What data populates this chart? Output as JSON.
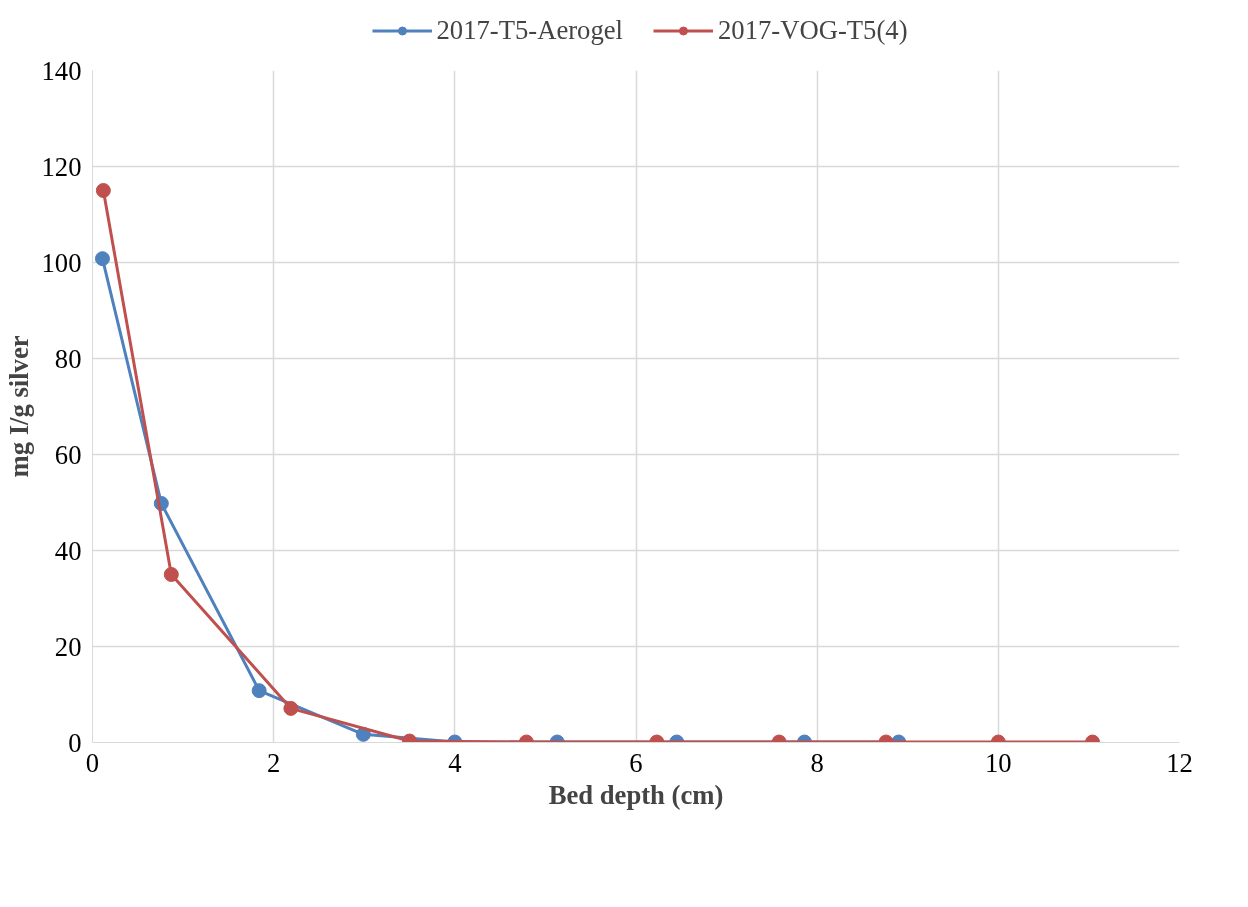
{
  "chart_data": {
    "type": "line",
    "xlabel": "Bed depth (cm)",
    "ylabel": "mg I/g silver",
    "xlim": [
      0,
      12
    ],
    "ylim": [
      0,
      140
    ],
    "xticks": [
      0,
      2,
      4,
      6,
      8,
      10,
      12
    ],
    "yticks": [
      0,
      20,
      40,
      60,
      80,
      100,
      120,
      140
    ],
    "grid": true,
    "legend": "top",
    "marker": "circle",
    "line_style": "solid",
    "series": [
      {
        "name": "2017-T5-Aerogel",
        "color": "#4f81bd",
        "x": [
          0.11,
          0.76,
          1.84,
          2.99,
          4.0,
          5.13,
          6.45,
          7.86,
          8.9
        ],
        "values": [
          100.8,
          49.8,
          10.8,
          1.7,
          0.1,
          0.1,
          0.1,
          0.1,
          0.1
        ]
      },
      {
        "name": "2017-VOG-T5(4)",
        "color": "#c0504d",
        "x": [
          0.12,
          0.87,
          2.19,
          3.5,
          4.79,
          6.23,
          7.58,
          8.76,
          10.0,
          11.04
        ],
        "values": [
          115,
          35,
          7.1,
          0.3,
          0.1,
          0.1,
          0.1,
          0.1,
          0.1,
          0.1
        ]
      }
    ]
  }
}
